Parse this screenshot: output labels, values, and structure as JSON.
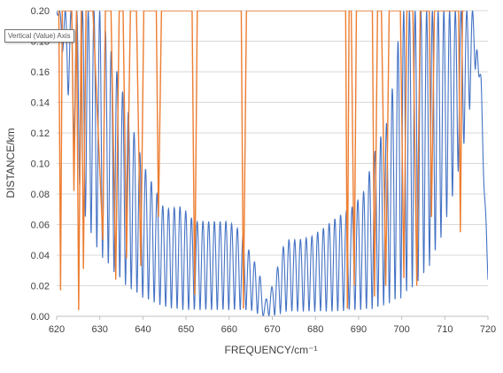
{
  "tooltip": "Vertical (Value) Axis",
  "chart_data": {
    "type": "line",
    "title": "",
    "xlabel": "FREQUENCY/cm⁻¹",
    "ylabel": "DISTANCE/km",
    "xlim": [
      620,
      720
    ],
    "ylim": [
      0,
      0.2
    ],
    "x_ticks": [
      "620",
      "630",
      "640",
      "650",
      "660",
      "670",
      "680",
      "690",
      "700",
      "710",
      "720"
    ],
    "y_ticks": [
      "0.00",
      "0.02",
      "0.04",
      "0.06",
      "0.08",
      "0.10",
      "0.12",
      "0.14",
      "0.16",
      "0.18",
      "0.20"
    ],
    "grid": "horizontal",
    "legend": "none",
    "series": [
      {
        "color": "#ED7D31",
        "note": "sparse sharp spikes",
        "x": [
          620.5,
          620.9,
          621.3,
          623.5,
          624.0,
          624.6,
          625.1,
          625.7,
          626.2,
          626.8,
          627.8,
          628.4,
          630.7,
          631.3,
          632.6,
          633.7,
          634.5,
          635.4,
          636.2,
          637.1,
          638.0,
          638.5,
          639.5,
          640.2,
          643.1,
          643.6,
          644.3,
          645.0,
          651.4,
          652.0,
          652.6,
          656.3,
          656.9,
          662.8,
          663.3,
          664.0,
          668.4,
          669.2,
          670.4,
          671.2,
          679.0,
          679.7,
          687.0,
          687.4,
          687.8,
          688.3,
          689.0,
          689.5,
          690.0,
          693.2,
          693.7,
          694.4,
          695.3,
          696.3,
          697.1,
          697.9,
          699.7,
          700.5,
          701.2,
          702.6,
          703.5,
          704.3,
          705.0,
          706.4,
          706.9,
          707.6,
          708.2,
          713.2,
          713.6,
          714.1,
          714.6
        ],
        "y": [
          0.2,
          0.017,
          0.2,
          0.2,
          0.082,
          0.2,
          0.004,
          0.2,
          0.031,
          0.2,
          0.2,
          0.2,
          0.05,
          0.2,
          0.2,
          0.024,
          0.2,
          0.2,
          0.038,
          0.2,
          0.2,
          0.2,
          0.033,
          0.2,
          0.2,
          0.065,
          0.2,
          0.2,
          0.2,
          0.014,
          0.2,
          0.2,
          0.2,
          0.2,
          0.005,
          0.2,
          0.2,
          0.2,
          0.2,
          0.2,
          0.2,
          0.2,
          0.2,
          0.005,
          0.2,
          0.2,
          0.02,
          0.2,
          0.2,
          0.2,
          0.013,
          0.2,
          0.2,
          0.02,
          0.2,
          0.2,
          0.2,
          0.025,
          0.2,
          0.2,
          0.02,
          0.2,
          0.2,
          0.2,
          0.065,
          0.2,
          0.2,
          0.2,
          0.055,
          0.2,
          0.2
        ]
      },
      {
        "color": "#4472C4",
        "note": "dense oscillation between a lower envelope and an upper envelope",
        "envelope_x": [
          620,
          622,
          625,
          627,
          630,
          633,
          636,
          640,
          645,
          649,
          652,
          655,
          658,
          660,
          663,
          665,
          667,
          668,
          670,
          673,
          676,
          679,
          682,
          685,
          688,
          691,
          694,
          697,
          700,
          703,
          706,
          709,
          712,
          715,
          717,
          718,
          719,
          720
        ],
        "envelope_upper": [
          0.2,
          0.2,
          0.2,
          0.2,
          0.2,
          0.17,
          0.14,
          0.1,
          0.07,
          0.072,
          0.062,
          0.062,
          0.062,
          0.062,
          0.055,
          0.04,
          0.03,
          0.008,
          0.02,
          0.05,
          0.05,
          0.052,
          0.058,
          0.065,
          0.07,
          0.08,
          0.11,
          0.13,
          0.2,
          0.2,
          0.2,
          0.2,
          0.2,
          0.2,
          0.2,
          0.15,
          0.09,
          0.03
        ],
        "envelope_lower": [
          0.2,
          0.16,
          0.09,
          0.06,
          0.04,
          0.03,
          0.02,
          0.012,
          0.006,
          0.004,
          0.004,
          0.004,
          0.004,
          0.004,
          0.004,
          0.004,
          0.001,
          0.0,
          0.0,
          0.003,
          0.003,
          0.003,
          0.003,
          0.003,
          0.004,
          0.004,
          0.005,
          0.008,
          0.012,
          0.02,
          0.03,
          0.05,
          0.08,
          0.12,
          0.16,
          0.18,
          0.12,
          0.02
        ],
        "period_x": 1.33
      }
    ]
  }
}
